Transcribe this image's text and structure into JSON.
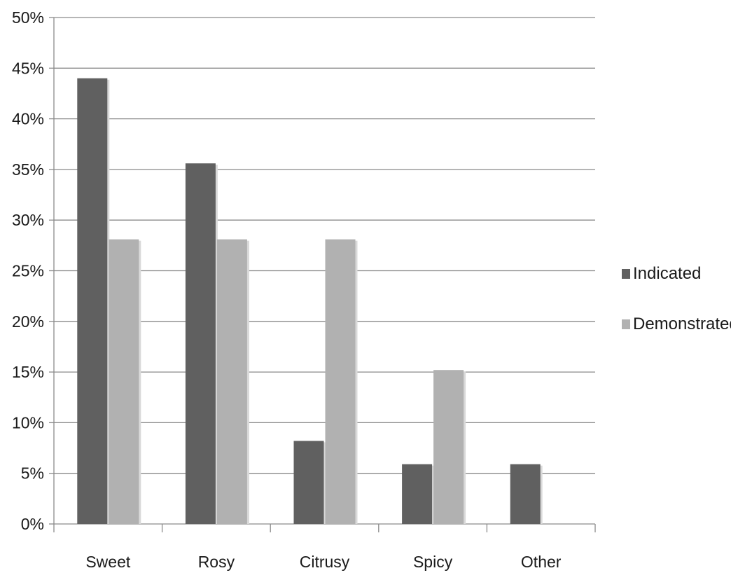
{
  "chart_data": {
    "type": "bar",
    "title": "",
    "xlabel": "",
    "ylabel": "",
    "categories": [
      "Sweet",
      "Rosy",
      "Citrusy",
      "Spicy",
      "Other"
    ],
    "series": [
      {
        "name": "Indicated",
        "values": [
          44,
          35.6,
          8.2,
          5.9,
          5.9
        ],
        "color": "#606060"
      },
      {
        "name": "Demonstrated",
        "values": [
          28.1,
          28.1,
          28.1,
          15.2,
          0
        ],
        "color": "#b1b1b1"
      }
    ],
    "ylim": [
      0,
      50
    ],
    "yticks": [
      0,
      5,
      10,
      15,
      20,
      25,
      30,
      35,
      40,
      45,
      50
    ],
    "ytick_labels": [
      "0%",
      "5%",
      "10%",
      "15%",
      "20%",
      "25%",
      "30%",
      "35%",
      "40%",
      "45%",
      "50%"
    ],
    "grid": true,
    "legend_position": "right"
  }
}
